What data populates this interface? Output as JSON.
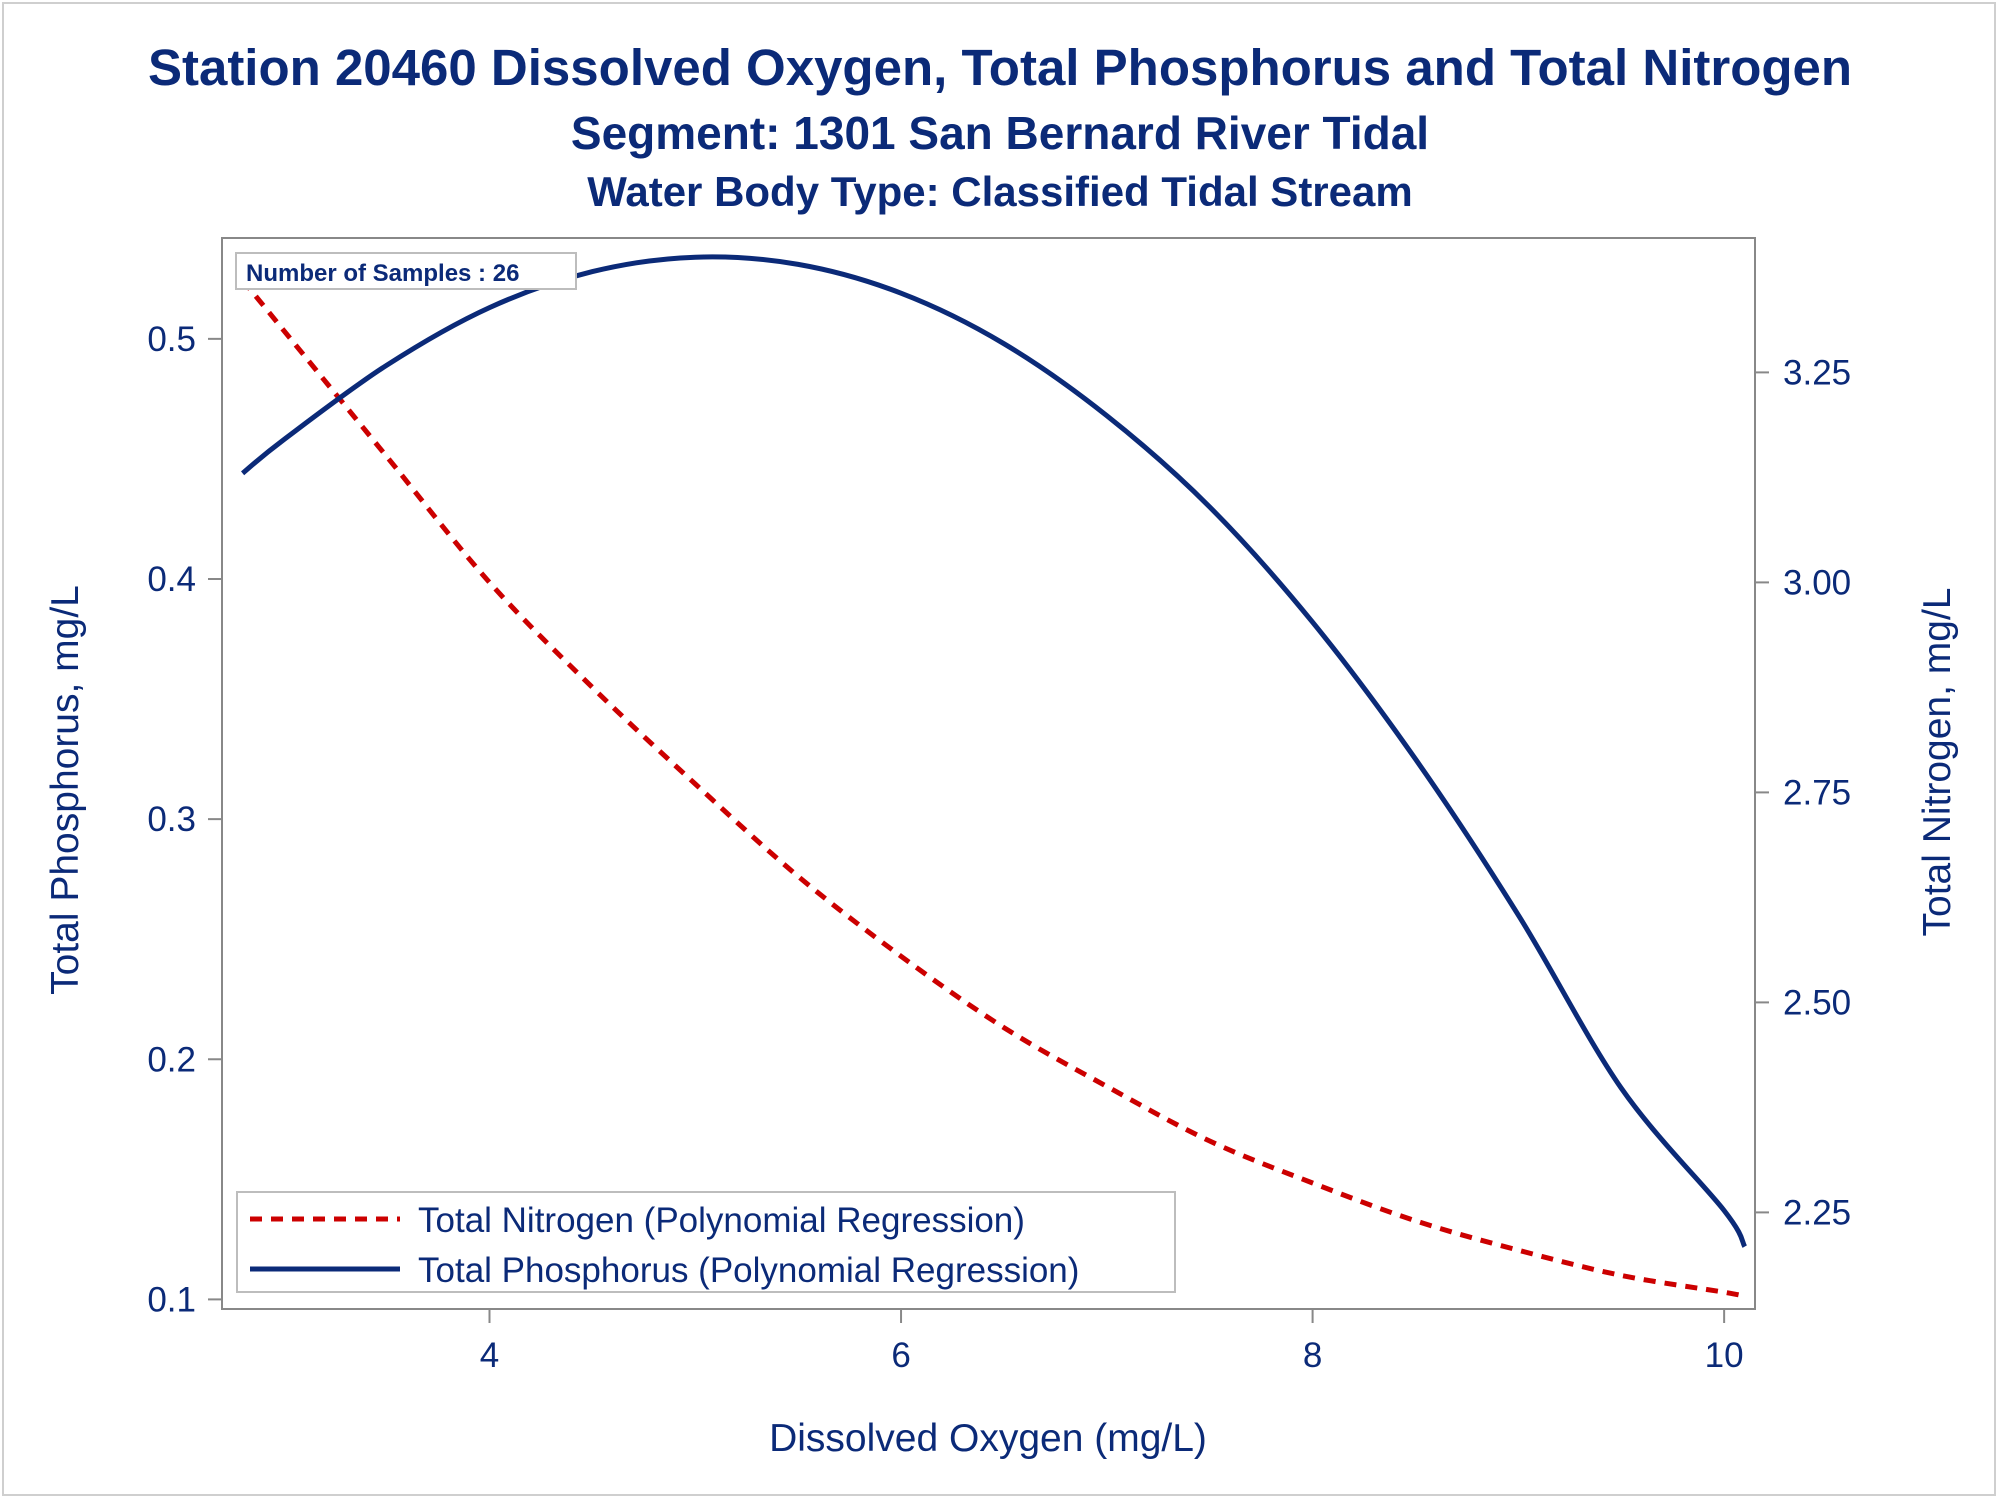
{
  "chart_data": {
    "type": "line",
    "title": "Station 20460  Dissolved Oxygen, Total Phosphorus and Total Nitrogen",
    "subtitle": "Segment: 1301  San Bernard River Tidal",
    "subtitle2": "Water Body Type: Classified Tidal Stream",
    "xlabel": "Dissolved Oxygen (mg/L)",
    "ylabel": "Total Phosphorus, mg/L",
    "y2label": "Total Nitrogen, mg/L",
    "annotation": "Number of Samples : 26",
    "xlim": [
      2.7,
      10.15
    ],
    "ylim": [
      0.096,
      0.542
    ],
    "y2lim": [
      2.135,
      3.41
    ],
    "xticks": [
      "4",
      "6",
      "8",
      "10"
    ],
    "yticks": [
      "0.1",
      "0.2",
      "0.3",
      "0.4",
      "0.5"
    ],
    "y2ticks": [
      "2.25",
      "2.50",
      "2.75",
      "3.00",
      "3.25"
    ],
    "legend_position": "bottom-left",
    "series": [
      {
        "name": "Total Nitrogen (Polynomial Regression)",
        "axis": "y2",
        "color": "#cc0000",
        "style": "dashed",
        "x": [
          2.8,
          3.0,
          3.5,
          4.0,
          4.5,
          5.0,
          5.5,
          6.0,
          6.5,
          7.0,
          7.5,
          8.0,
          8.5,
          9.0,
          9.5,
          10.0,
          10.1
        ],
        "y": [
          3.36,
          3.3,
          3.15,
          3.0,
          2.875,
          2.76,
          2.65,
          2.555,
          2.47,
          2.4,
          2.335,
          2.285,
          2.24,
          2.205,
          2.175,
          2.155,
          2.15
        ]
      },
      {
        "name": "Total Phosphorus (Polynomial Regression)",
        "axis": "y",
        "color": "#0b2a78",
        "style": "solid",
        "x": [
          2.8,
          3.0,
          3.5,
          4.0,
          4.5,
          5.0,
          5.5,
          6.0,
          6.5,
          7.0,
          7.5,
          8.0,
          8.5,
          9.0,
          9.5,
          10.0,
          10.1
        ],
        "y": [
          0.444,
          0.458,
          0.489,
          0.513,
          0.528,
          0.534,
          0.531,
          0.519,
          0.498,
          0.468,
          0.43,
          0.382,
          0.325,
          0.26,
          0.188,
          0.137,
          0.122
        ]
      }
    ],
    "axis_color": "#888888",
    "text_color": "#0b2a78"
  }
}
